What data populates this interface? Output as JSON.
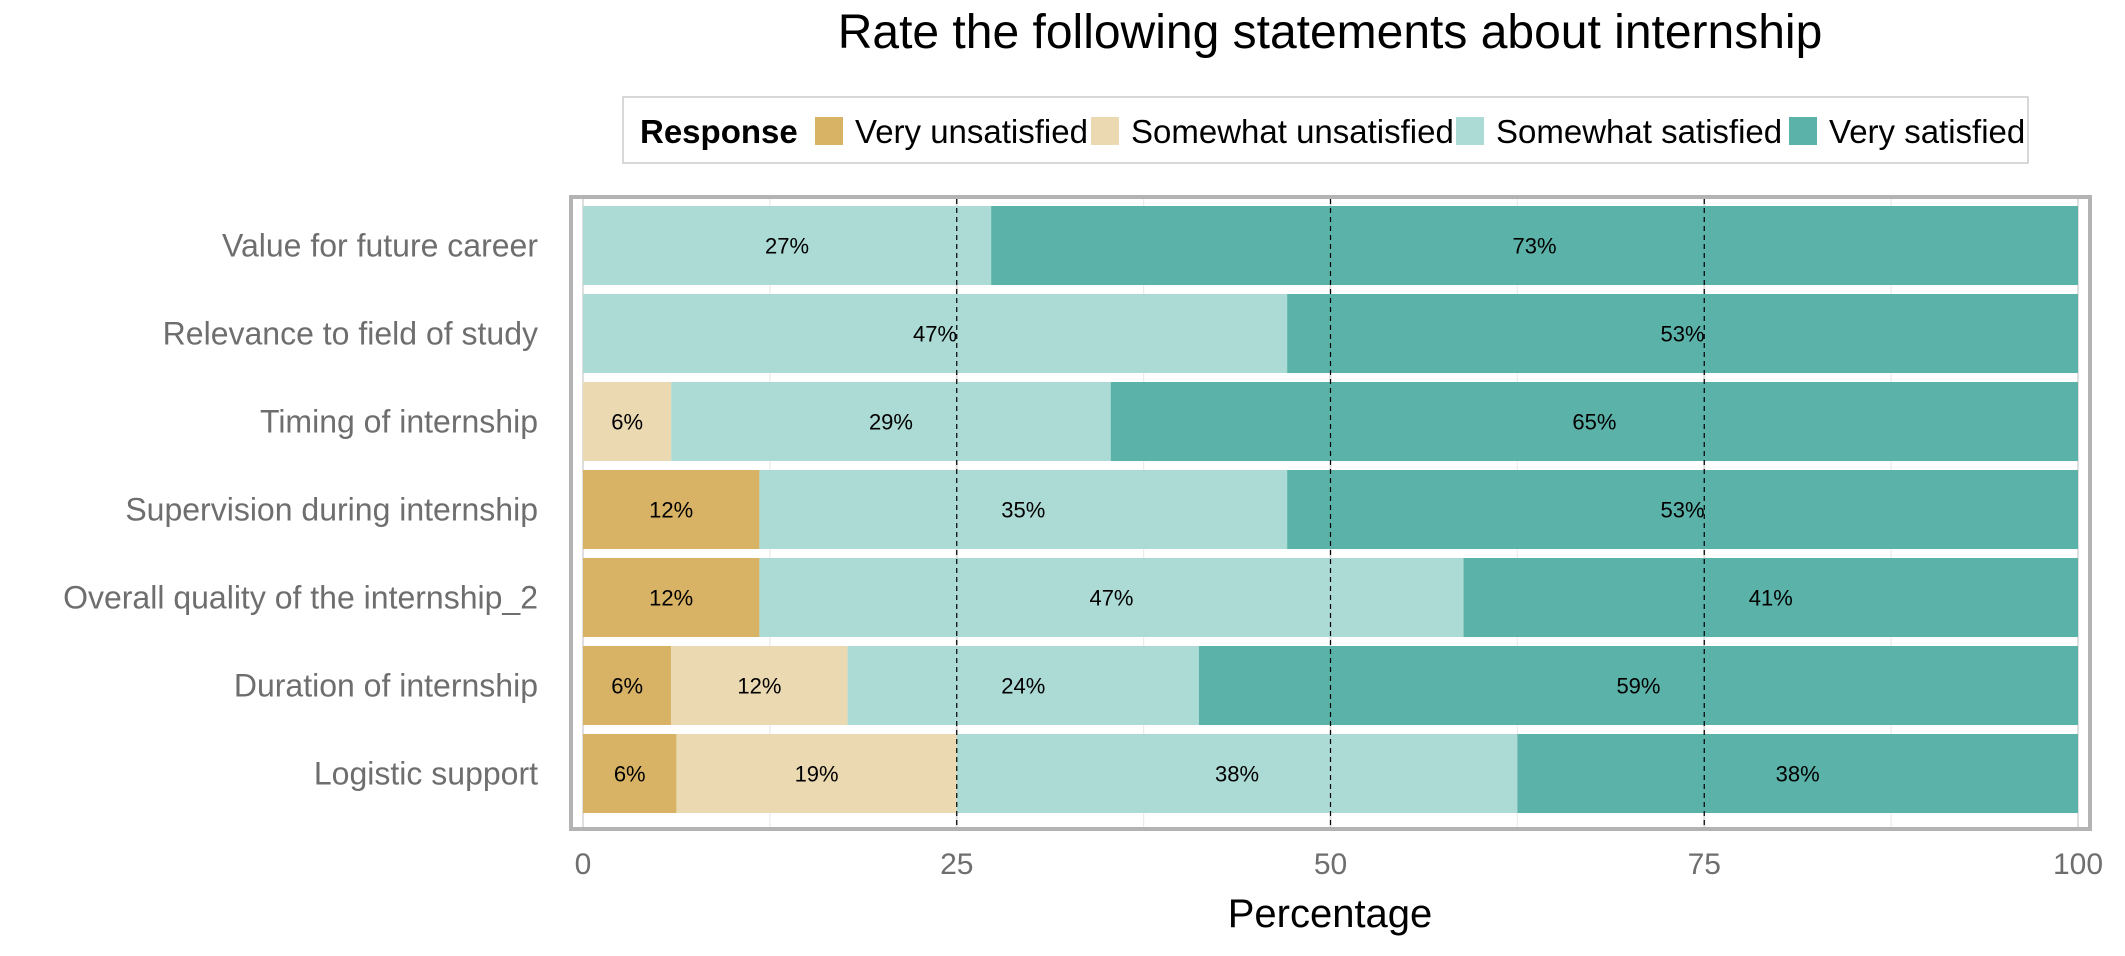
{
  "chart_data": {
    "type": "bar",
    "orientation": "horizontal",
    "stacked": true,
    "title": "Rate the following statements about internship",
    "xlabel": "Percentage",
    "ylabel": "",
    "xlim": [
      0,
      100
    ],
    "x_ticks": [
      "0",
      "25",
      "50",
      "75",
      "100"
    ],
    "grid": true,
    "reference_lines": [
      25,
      50,
      75
    ],
    "legend": {
      "title": "Response",
      "position": "top"
    },
    "categories": [
      "Value for future career",
      "Relevance to field of study",
      "Timing of internship",
      "Supervision during internship",
      "Overall quality of the internship_2",
      "Duration of internship",
      "Logistic support"
    ],
    "series": [
      {
        "name": "Very unsatisfied",
        "color": "#D8B365",
        "values": [
          0,
          0,
          0,
          11.8,
          11.8,
          5.9,
          6.25
        ],
        "labels": [
          "",
          "",
          "",
          "12%",
          "12%",
          "6%",
          "6%"
        ]
      },
      {
        "name": "Somewhat unsatisfied",
        "color": "#EBD9B2",
        "values": [
          0,
          0,
          5.9,
          0,
          0,
          11.8,
          18.75
        ],
        "labels": [
          "",
          "",
          "6%",
          "",
          "",
          "12%",
          "19%"
        ]
      },
      {
        "name": "Somewhat satisfied",
        "color": "#ACDAD5",
        "values": [
          27.3,
          47.1,
          29.4,
          35.3,
          47.1,
          23.5,
          37.5
        ],
        "labels": [
          "27%",
          "47%",
          "29%",
          "35%",
          "47%",
          "24%",
          "38%"
        ]
      },
      {
        "name": "Very satisfied",
        "color": "#5AB2A8",
        "values": [
          72.7,
          52.9,
          64.7,
          52.9,
          41.1,
          58.8,
          37.5
        ],
        "labels": [
          "73%",
          "53%",
          "65%",
          "53%",
          "41%",
          "59%",
          "38%"
        ]
      }
    ]
  }
}
